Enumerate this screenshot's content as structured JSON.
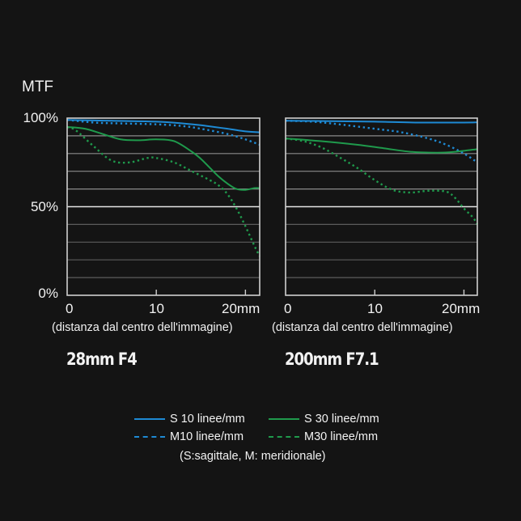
{
  "y_axis": {
    "title": "MTF",
    "ticks": [
      "100%",
      "50%",
      "0%"
    ]
  },
  "charts": [
    {
      "title": "28mm F4",
      "x_ticks": [
        "0",
        "10",
        "20mm"
      ],
      "x_label": "(distanza dal centro dell'immagine)"
    },
    {
      "title": "200mm F7.1",
      "x_ticks": [
        "0",
        "10",
        "20mm"
      ],
      "x_label": "(distanza dal centro dell'immagine)"
    }
  ],
  "legend": {
    "items": [
      {
        "label": "S 10 linee/mm",
        "color": "#1e8ad4",
        "style": "solid"
      },
      {
        "label": "S 30 linee/mm",
        "color": "#1f9a4c",
        "style": "solid"
      },
      {
        "label": "M10 linee/mm",
        "color": "#1e8ad4",
        "style": "dashed"
      },
      {
        "label": "M30 linee/mm",
        "color": "#1f9a4c",
        "style": "dashed"
      }
    ],
    "note": "(S:sagittale, M: meridionale)"
  },
  "colors": {
    "background": "#141414",
    "blue": "#1e8ad4",
    "green": "#1f9a4c",
    "grid_upper": "#8a8a8a",
    "grid_lower": "#5c5c5c",
    "grid_50": "#e6e6e6",
    "frame": "#cfcfcf"
  },
  "chart_data": [
    {
      "type": "line",
      "title": "28mm F4",
      "xlabel": "(distanza dal centro dell'immagine)",
      "ylabel": "MTF",
      "x_ticks": [
        0,
        10,
        20
      ],
      "x_unit": "mm",
      "xlim": [
        0,
        21.6
      ],
      "ylim": [
        0,
        100
      ],
      "y_ticks": [
        "0%",
        "50%",
        "100%"
      ],
      "grid": true,
      "grid_step": 10,
      "series": [
        {
          "name": "S 10 linee/mm",
          "style": "solid",
          "color": "#1e8ad4",
          "x": [
            0,
            5,
            10,
            13,
            15,
            18,
            20,
            21.6
          ],
          "values": [
            99,
            98.5,
            98,
            97,
            96,
            94,
            92.5,
            92
          ]
        },
        {
          "name": "M10 linee/mm",
          "style": "dashed",
          "color": "#1e8ad4",
          "x": [
            0,
            3,
            6,
            10,
            13,
            15,
            18,
            20,
            21.6
          ],
          "values": [
            99,
            97.5,
            97,
            96.5,
            95.5,
            94,
            91,
            88,
            85
          ]
        },
        {
          "name": "S 30 linee/mm",
          "style": "solid",
          "color": "#1f9a4c",
          "x": [
            0,
            2,
            4,
            6,
            8,
            10,
            12,
            14,
            15,
            16,
            17,
            18,
            19,
            20,
            21,
            21.6
          ],
          "values": [
            95,
            94,
            91,
            88,
            87.5,
            88,
            87,
            81,
            77,
            72,
            67,
            63,
            60,
            59.5,
            60.5,
            60.5
          ]
        },
        {
          "name": "M30 linee/mm",
          "style": "dashed",
          "color": "#1f9a4c",
          "x": [
            0,
            1,
            3,
            5,
            7,
            9,
            10,
            12,
            14,
            16,
            17,
            18,
            19,
            20,
            21,
            21.6
          ],
          "values": [
            95,
            93,
            84,
            76,
            75,
            77.5,
            77.5,
            75,
            70,
            65,
            62,
            57,
            49,
            39,
            28,
            22
          ]
        }
      ]
    },
    {
      "type": "line",
      "title": "200mm F7.1",
      "xlabel": "(distanza dal centro dell'immagine)",
      "ylabel": "MTF",
      "x_ticks": [
        0,
        10,
        20
      ],
      "x_unit": "mm",
      "xlim": [
        0,
        21.5
      ],
      "ylim": [
        0,
        100
      ],
      "y_ticks": [
        "0%",
        "50%",
        "100%"
      ],
      "grid": true,
      "grid_step": 10,
      "series": [
        {
          "name": "S 10 linee/mm",
          "style": "solid",
          "color": "#1e8ad4",
          "x": [
            0,
            5,
            10,
            15,
            20,
            21.5
          ],
          "values": [
            98.5,
            98.3,
            98,
            97.5,
            97.5,
            97.6
          ]
        },
        {
          "name": "M10 linee/mm",
          "style": "dashed",
          "color": "#1e8ad4",
          "x": [
            0,
            3,
            6,
            10,
            13,
            16,
            18,
            20,
            21.5
          ],
          "values": [
            98.5,
            98,
            96.5,
            94,
            92,
            88.5,
            85,
            80,
            75
          ]
        },
        {
          "name": "S 30 linee/mm",
          "style": "solid",
          "color": "#1f9a4c",
          "x": [
            0,
            4,
            8,
            11,
            14,
            17,
            19,
            21.5
          ],
          "values": [
            88.5,
            87,
            85,
            83,
            81,
            80.5,
            81,
            82.5
          ]
        },
        {
          "name": "M30 linee/mm",
          "style": "dashed",
          "color": "#1f9a4c",
          "x": [
            0,
            2,
            4,
            6,
            8,
            10,
            12,
            14,
            16,
            18,
            19,
            20,
            21,
            21.5
          ],
          "values": [
            88.5,
            87,
            83.5,
            78,
            72,
            65,
            59.5,
            58,
            59,
            58.5,
            55,
            49,
            44,
            40
          ]
        }
      ]
    }
  ]
}
